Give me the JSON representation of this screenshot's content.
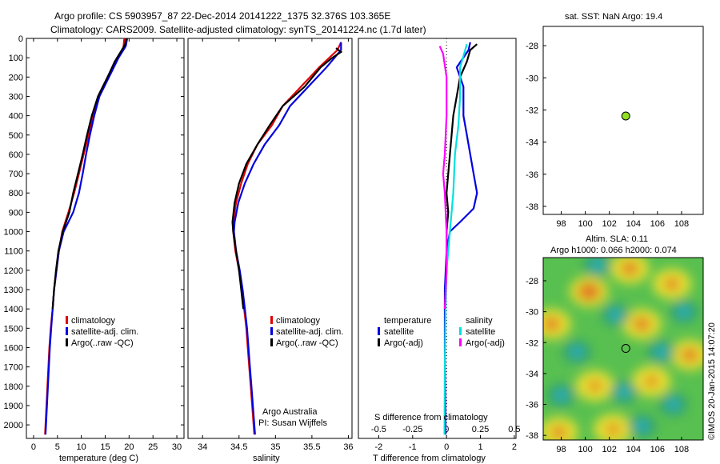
{
  "header": {
    "title_line1": "Argo profile: CS 5903957_87 22-Dec-2014 20141222_1375 32.376S 103.365E",
    "title_line2": "Climatology: CARS2009. Satellite-adjusted climatology: synTS_20141224.nc (1.7d later)"
  },
  "colors": {
    "climatology": "#e00000",
    "satellite": "#0000e0",
    "argo": "#000000",
    "satellite_sal": "#00e0e0",
    "argo_sal": "#ff00ff",
    "map_bg": "#58c050",
    "point": "#90e020"
  },
  "chart_data": [
    {
      "type": "line",
      "xlabel": "temperature (deg C)",
      "ylabel": "",
      "xlim": [
        -1.5,
        31.5
      ],
      "ylim": [
        2070,
        0
      ],
      "xticks": [
        "0",
        "5",
        "10",
        "15",
        "20",
        "25",
        "30"
      ],
      "yticks": [
        "0",
        "100",
        "200",
        "300",
        "400",
        "500",
        "600",
        "700",
        "800",
        "900",
        "1000",
        "1100",
        "1200",
        "1300",
        "1400",
        "1500",
        "1600",
        "1700",
        "1800",
        "1900",
        "2000"
      ],
      "legend": [
        "climatology",
        "satellite-adj. clim.",
        "Argo(..raw -QC)"
      ],
      "series": [
        {
          "name": "climatology",
          "color": "#e00000",
          "points": [
            [
              19.0,
              0
            ],
            [
              18.8,
              50
            ],
            [
              17.5,
              100
            ],
            [
              15.5,
              200
            ],
            [
              13.5,
              300
            ],
            [
              12.5,
              400
            ],
            [
              11.5,
              500
            ],
            [
              10.5,
              600
            ],
            [
              9.5,
              700
            ],
            [
              8.5,
              800
            ],
            [
              7.3,
              900
            ],
            [
              6.0,
              1000
            ],
            [
              5.3,
              1100
            ],
            [
              4.8,
              1200
            ],
            [
              4.3,
              1300
            ],
            [
              4.0,
              1400
            ],
            [
              3.6,
              1500
            ],
            [
              3.3,
              1600
            ],
            [
              3.1,
              1700
            ],
            [
              2.9,
              1800
            ],
            [
              2.7,
              1900
            ],
            [
              2.5,
              2000
            ],
            [
              2.4,
              2050
            ]
          ]
        },
        {
          "name": "satellite-adj. clim.",
          "color": "#0000e0",
          "points": [
            [
              19.6,
              0
            ],
            [
              19.3,
              40
            ],
            [
              17.8,
              100
            ],
            [
              15.8,
              200
            ],
            [
              13.8,
              300
            ],
            [
              12.7,
              400
            ],
            [
              11.8,
              500
            ],
            [
              11.0,
              600
            ],
            [
              10.3,
              700
            ],
            [
              9.5,
              800
            ],
            [
              8.3,
              900
            ],
            [
              6.3,
              1000
            ],
            [
              5.3,
              1100
            ],
            [
              4.8,
              1200
            ],
            [
              4.3,
              1300
            ],
            [
              4.0,
              1400
            ],
            [
              3.7,
              1500
            ],
            [
              3.4,
              1600
            ],
            [
              3.2,
              1700
            ],
            [
              3.0,
              1800
            ],
            [
              2.8,
              1900
            ],
            [
              2.6,
              2000
            ],
            [
              2.5,
              2050
            ]
          ]
        },
        {
          "name": "Argo(..raw -QC)",
          "color": "#000000",
          "points": [
            [
              19.4,
              0
            ],
            [
              19.2,
              30
            ],
            [
              18.0,
              80
            ],
            [
              17.0,
              120
            ],
            [
              15.5,
              200
            ],
            [
              13.5,
              300
            ],
            [
              12.2,
              400
            ],
            [
              11.2,
              500
            ],
            [
              10.3,
              600
            ],
            [
              9.3,
              700
            ],
            [
              8.3,
              800
            ],
            [
              7.5,
              900
            ],
            [
              6.1,
              1000
            ],
            [
              5.2,
              1100
            ],
            [
              4.7,
              1200
            ],
            [
              4.3,
              1300
            ],
            [
              4.0,
              1400
            ]
          ]
        }
      ]
    },
    {
      "type": "line",
      "xlabel": "salinity",
      "ylabel": "",
      "xlim": [
        33.8,
        36.05
      ],
      "ylim": [
        2070,
        0
      ],
      "xticks": [
        "34",
        "34.5",
        "35",
        "35.5",
        "36"
      ],
      "legend": [
        "climatology",
        "satellite-adj. clim.",
        "Argo(..raw -QC)"
      ],
      "annotation_line1": "Argo Australia",
      "annotation_line2": "PI: Susan Wijffels",
      "series": [
        {
          "name": "climatology",
          "color": "#e00000",
          "points": [
            [
              35.9,
              20
            ],
            [
              35.85,
              60
            ],
            [
              35.6,
              150
            ],
            [
              35.35,
              250
            ],
            [
              35.1,
              350
            ],
            [
              34.95,
              450
            ],
            [
              34.75,
              550
            ],
            [
              34.62,
              650
            ],
            [
              34.53,
              750
            ],
            [
              34.46,
              850
            ],
            [
              34.42,
              950
            ],
            [
              34.42,
              1000
            ],
            [
              34.45,
              1100
            ],
            [
              34.5,
              1200
            ],
            [
              34.54,
              1300
            ],
            [
              34.57,
              1400
            ],
            [
              34.6,
              1500
            ],
            [
              34.62,
              1600
            ],
            [
              34.64,
              1700
            ],
            [
              34.66,
              1800
            ],
            [
              34.68,
              1900
            ],
            [
              34.7,
              2000
            ],
            [
              34.71,
              2050
            ]
          ]
        },
        {
          "name": "satellite-adj. clim.",
          "color": "#0000e0",
          "points": [
            [
              35.9,
              20
            ],
            [
              35.9,
              60
            ],
            [
              35.7,
              150
            ],
            [
              35.45,
              250
            ],
            [
              35.2,
              350
            ],
            [
              35.05,
              450
            ],
            [
              34.85,
              550
            ],
            [
              34.7,
              650
            ],
            [
              34.58,
              750
            ],
            [
              34.49,
              850
            ],
            [
              34.44,
              950
            ],
            [
              34.43,
              1000
            ],
            [
              34.46,
              1100
            ],
            [
              34.51,
              1200
            ],
            [
              34.55,
              1300
            ],
            [
              34.58,
              1400
            ],
            [
              34.61,
              1500
            ],
            [
              34.63,
              1600
            ],
            [
              34.65,
              1700
            ],
            [
              34.67,
              1800
            ],
            [
              34.69,
              1900
            ],
            [
              34.71,
              2000
            ],
            [
              34.72,
              2050
            ]
          ]
        },
        {
          "name": "Argo(..raw -QC)",
          "color": "#000000",
          "points": [
            [
              35.83,
              50
            ],
            [
              35.9,
              70
            ],
            [
              35.78,
              100
            ],
            [
              35.62,
              150
            ],
            [
              35.4,
              250
            ],
            [
              35.1,
              350
            ],
            [
              34.92,
              450
            ],
            [
              34.75,
              550
            ],
            [
              34.6,
              650
            ],
            [
              34.5,
              750
            ],
            [
              34.44,
              850
            ],
            [
              34.41,
              950
            ],
            [
              34.42,
              1000
            ],
            [
              34.46,
              1100
            ],
            [
              34.5,
              1200
            ],
            [
              34.53,
              1300
            ],
            [
              34.56,
              1400
            ]
          ]
        }
      ]
    },
    {
      "type": "line",
      "xlabel": "T difference from climatology",
      "xlabel_top": "S difference from climatology",
      "xlim": [
        -2.6,
        2.05
      ],
      "ylim": [
        2070,
        0
      ],
      "xticks_bottom": [
        "-2",
        "-1",
        "0",
        "1",
        "2"
      ],
      "xticks_top": [
        "-0.5",
        "-0.25",
        "0",
        "0.25",
        "0.5"
      ],
      "legend_temperature_title": "temperature",
      "legend_salinity_title": "salinity",
      "legend": [
        "satellite",
        "Argo(-adj)",
        "satellite",
        "Argo(-adj)"
      ],
      "series": [
        {
          "name": "temperature satellite",
          "color": "#0000e0",
          "points": [
            [
              0.7,
              20
            ],
            [
              0.65,
              60
            ],
            [
              0.3,
              150
            ],
            [
              0.5,
              250
            ],
            [
              0.5,
              400
            ],
            [
              0.6,
              500
            ],
            [
              0.7,
              600
            ],
            [
              0.8,
              700
            ],
            [
              0.9,
              800
            ],
            [
              0.8,
              880
            ],
            [
              0.4,
              950
            ],
            [
              0.1,
              1000
            ],
            [
              0.0,
              1100
            ],
            [
              -0.05,
              1300
            ],
            [
              -0.05,
              1600
            ],
            [
              -0.03,
              2050
            ]
          ]
        },
        {
          "name": "temperature Argo(-adj)",
          "color": "#000000",
          "points": [
            [
              0.9,
              30
            ],
            [
              0.7,
              60
            ],
            [
              0.6,
              120
            ],
            [
              0.4,
              200
            ],
            [
              0.3,
              300
            ],
            [
              0.2,
              400
            ],
            [
              0.15,
              500
            ],
            [
              0.1,
              600
            ],
            [
              0.05,
              700
            ],
            [
              0.0,
              800
            ],
            [
              0.05,
              900
            ],
            [
              0.0,
              1000
            ],
            [
              0.0,
              1200
            ],
            [
              -0.05,
              1400
            ]
          ]
        },
        {
          "name": "salinity satellite",
          "color": "#00e0e0",
          "points": [
            [
              0.6,
              30
            ],
            [
              0.55,
              60
            ],
            [
              0.4,
              150
            ],
            [
              0.4,
              300
            ],
            [
              0.35,
              450
            ],
            [
              0.25,
              600
            ],
            [
              0.2,
              800
            ],
            [
              0.1,
              1000
            ],
            [
              0.0,
              1200
            ],
            [
              -0.03,
              1400
            ],
            [
              -0.05,
              1700
            ],
            [
              -0.06,
              2050
            ]
          ]
        },
        {
          "name": "salinity Argo(-adj)",
          "color": "#ff00ff",
          "points": [
            [
              -0.2,
              40
            ],
            [
              -0.1,
              80
            ],
            [
              0.0,
              200
            ],
            [
              0.0,
              400
            ],
            [
              -0.05,
              600
            ],
            [
              -0.1,
              700
            ],
            [
              -0.05,
              800
            ],
            [
              0.0,
              1000
            ],
            [
              0.0,
              1200
            ],
            [
              -0.05,
              1400
            ]
          ]
        }
      ]
    },
    {
      "type": "scatter",
      "title": "sat. SST: NaN Argo: 19.4",
      "xlim": [
        96.5,
        109.8
      ],
      "ylim": [
        -38.5,
        -26.8
      ],
      "xticks": [
        "98",
        "100",
        "102",
        "104",
        "106",
        "108"
      ],
      "yticks": [
        "-28",
        "-30",
        "-32",
        "-34",
        "-36",
        "-38"
      ],
      "points": [
        [
          103.365,
          -32.376
        ]
      ]
    },
    {
      "type": "heatmap",
      "title_line1": "Altim. SLA: 0.11",
      "title_line2": "Argo h1000: 0.066 h2000: 0.074",
      "xlim": [
        96.5,
        109.8
      ],
      "ylim": [
        -38.3,
        -26.5
      ],
      "xticks": [
        "98",
        "100",
        "102",
        "104",
        "106",
        "108"
      ],
      "yticks": [
        "-28",
        "-30",
        "-32",
        "-34",
        "-36",
        "-38"
      ],
      "points": [
        [
          103.365,
          -32.376
        ]
      ],
      "blobs": [
        {
          "lon": 100.3,
          "lat": -28.7,
          "v": 0.9
        },
        {
          "lon": 103.7,
          "lat": -27.2,
          "v": 0.6
        },
        {
          "lon": 107.2,
          "lat": -28.2,
          "v": 0.5
        },
        {
          "lon": 97.2,
          "lat": -30.8,
          "v": 0.6
        },
        {
          "lon": 104.7,
          "lat": -30.8,
          "v": 0.6
        },
        {
          "lon": 108.7,
          "lat": -32.8,
          "v": 0.6
        },
        {
          "lon": 100.8,
          "lat": -34.8,
          "v": 0.4
        },
        {
          "lon": 105.5,
          "lat": -34.5,
          "v": 0.4
        },
        {
          "lon": 97.8,
          "lat": -37.8,
          "v": 0.5
        },
        {
          "lon": 102.3,
          "lat": -37.6,
          "v": 0.4
        },
        {
          "lon": 99.3,
          "lat": -32.6,
          "v": -0.8
        },
        {
          "lon": 106.3,
          "lat": -32.6,
          "v": -0.8
        },
        {
          "lon": 102.5,
          "lat": -30.2,
          "v": -0.7
        },
        {
          "lon": 103.2,
          "lat": -35.2,
          "v": -0.6
        },
        {
          "lon": 108.2,
          "lat": -30.0,
          "v": -0.7
        },
        {
          "lon": 98.0,
          "lat": -35.4,
          "v": -0.6
        },
        {
          "lon": 107.3,
          "lat": -36.0,
          "v": -0.8
        },
        {
          "lon": 104.7,
          "lat": -37.4,
          "v": -0.7
        },
        {
          "lon": 101.0,
          "lat": -27.0,
          "v": -0.4
        }
      ]
    }
  ],
  "footer": {
    "stamp": "©IMOS 20-Jan-2015 14:07:20"
  }
}
